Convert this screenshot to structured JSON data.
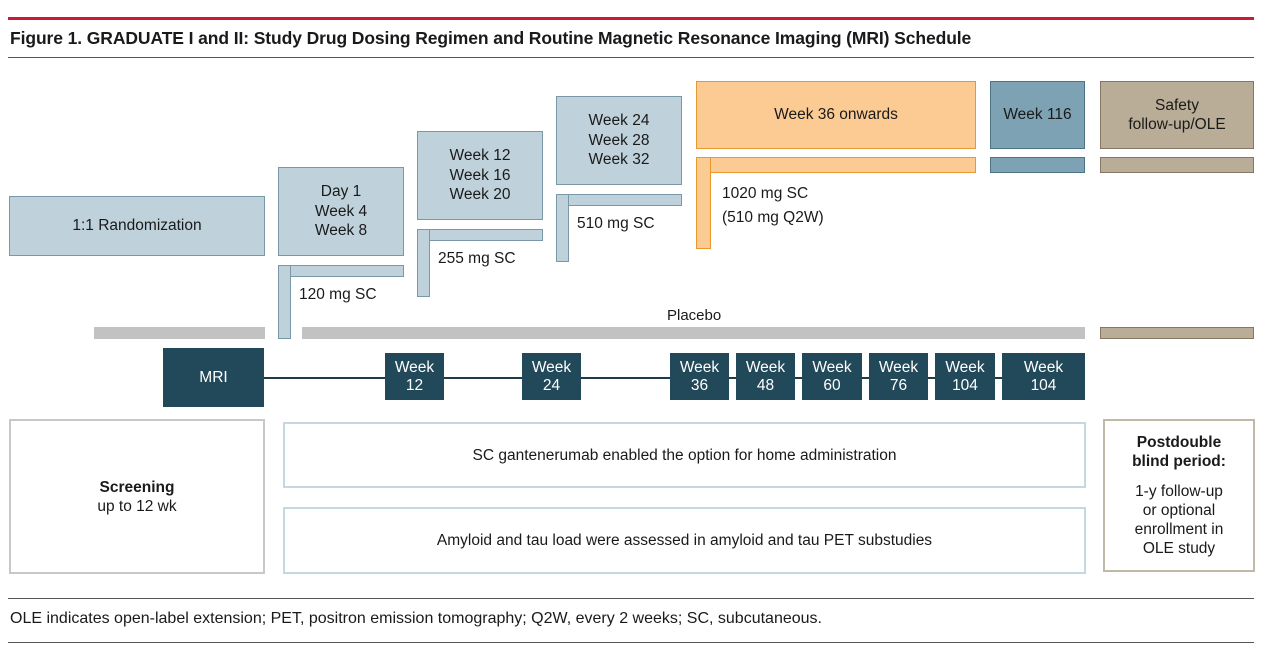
{
  "figure": {
    "title": "Figure 1. GRADUATE I and II: Study Drug Dosing Regimen and Routine Magnetic Resonance Imaging (MRI) Schedule",
    "footnote": "OLE indicates open-label extension; PET, positron emission tomography; Q2W, every 2 weeks; SC, subcutaneous."
  },
  "dosing": {
    "randomization": "1:1 Randomization",
    "step1": {
      "lines": [
        "Day 1",
        "Week 4",
        "Week 8"
      ],
      "dose": "120 mg SC"
    },
    "step2": {
      "lines": [
        "Week 12",
        "Week 16",
        "Week 20"
      ],
      "dose": "255 mg SC"
    },
    "step3": {
      "lines": [
        "Week 24",
        "Week 28",
        "Week 32"
      ],
      "dose": "510 mg SC"
    },
    "step4": {
      "label": "Week 36 onwards",
      "dose_lines": [
        "1020 mg SC",
        "(510 mg Q2W)"
      ]
    },
    "week116": "Week 116",
    "safety": [
      "Safety",
      "follow-up/OLE"
    ],
    "placebo": "Placebo"
  },
  "mri_schedule": {
    "mri_label": "MRI",
    "visits": [
      {
        "line1": "Week",
        "line2": "12"
      },
      {
        "line1": "Week",
        "line2": "24"
      },
      {
        "line1": "Week",
        "line2": "36"
      },
      {
        "line1": "Week",
        "line2": "48"
      },
      {
        "line1": "Week",
        "line2": "60"
      },
      {
        "line1": "Week",
        "line2": "76"
      },
      {
        "line1": "Week",
        "line2": "104"
      },
      {
        "line1": "Week",
        "line2": "104"
      }
    ]
  },
  "periods": {
    "screening_title": "Screening",
    "screening_sub": "up to 12 wk",
    "home_admin": "SC gantenerumab enabled the option for home administration",
    "pet": "Amyloid and tau load were assessed in amyloid and tau PET substudies",
    "post_title": [
      "Postdouble",
      "blind period:"
    ],
    "post_body": [
      "1-y follow-up",
      "or optional",
      "enrollment in",
      "OLE study"
    ]
  },
  "colors": {
    "accent_red": "#cc1a36",
    "dose_blue": "#bfd1db",
    "dose_orange": "#fccb93",
    "week116_teal": "#7ca2b3",
    "safety_tan": "#baad98",
    "mri_dark": "#22495a",
    "placebo_grey": "#c2c2c2"
  }
}
